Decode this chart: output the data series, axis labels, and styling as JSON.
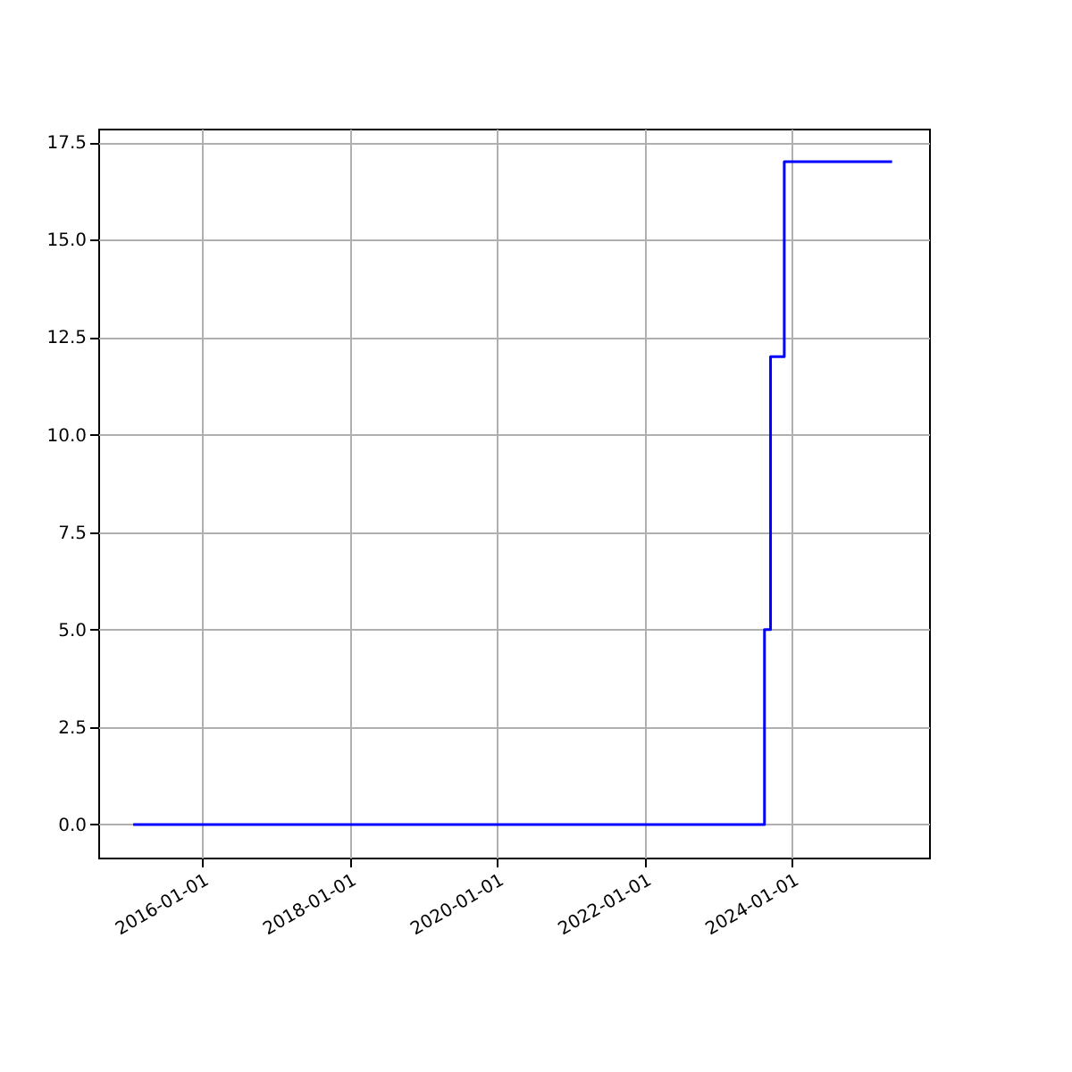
{
  "chart_data": {
    "type": "step",
    "x": [
      "2015-01-26",
      "2023-08-18",
      "2023-09-17",
      "2023-11-24",
      "2025-05-11"
    ],
    "series": [
      {
        "color": "#0000ff",
        "values": [
          0,
          5,
          12,
          17,
          17
        ]
      }
    ],
    "xlim": [
      "2014-08-06",
      "2025-11-10"
    ],
    "xticks": [
      "2016-01-01",
      "2018-01-01",
      "2020-01-01",
      "2022-01-01",
      "2024-01-01"
    ],
    "ylim": [
      -0.85,
      17.85
    ],
    "yticks": [
      {
        "value": 0,
        "label": "0.0"
      },
      {
        "value": 2.5,
        "label": "2.5"
      },
      {
        "value": 5,
        "label": "5.0"
      },
      {
        "value": 7.5,
        "label": "7.5"
      },
      {
        "value": 10,
        "label": "10.0"
      },
      {
        "value": 12.5,
        "label": "12.5"
      },
      {
        "value": 15,
        "label": "15.0"
      },
      {
        "value": 17.5,
        "label": "17.5"
      }
    ],
    "grid": true,
    "marker": "none",
    "line_style": "solid"
  }
}
